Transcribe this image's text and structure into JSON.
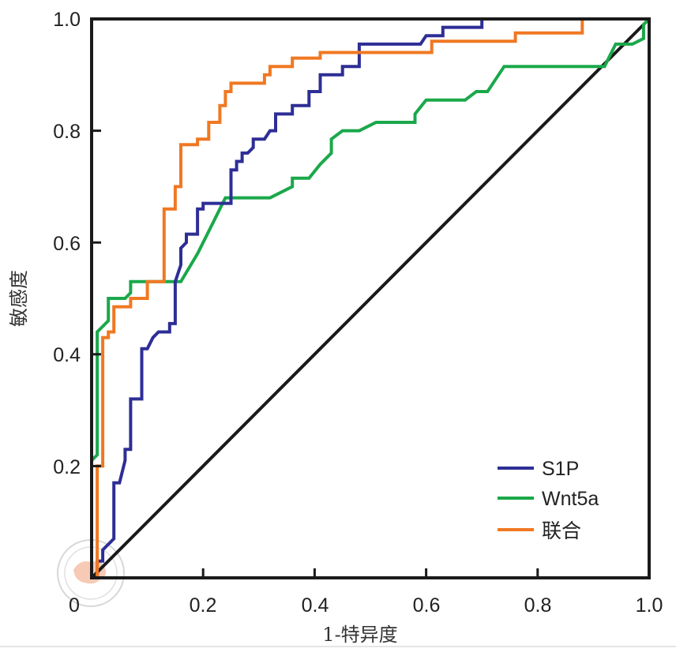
{
  "chart_data": {
    "type": "line",
    "title": "",
    "xlabel": "1-特异度",
    "ylabel": "敏感度",
    "xlim": [
      0,
      1.0
    ],
    "ylim": [
      0,
      1.0
    ],
    "x_ticks": [
      0,
      0.2,
      0.4,
      0.6,
      0.8,
      1.0
    ],
    "x_tick_labels": [
      "0",
      "0.2",
      "0.4",
      "0.6",
      "0.8",
      "1.0"
    ],
    "y_ticks": [
      0.2,
      0.4,
      0.6,
      0.8,
      1.0
    ],
    "y_tick_labels": [
      "0.2",
      "0.4",
      "0.6",
      "0.8",
      "1.0"
    ],
    "grid": false,
    "legend_position": "bottom-right",
    "series": [
      {
        "name": "S1P",
        "color": "#2e2e96",
        "points": [
          [
            0,
            0
          ],
          [
            0.01,
            0
          ],
          [
            0.01,
            0.03
          ],
          [
            0.02,
            0.03
          ],
          [
            0.02,
            0.05
          ],
          [
            0.03,
            0.06
          ],
          [
            0.04,
            0.07
          ],
          [
            0.04,
            0.17
          ],
          [
            0.05,
            0.17
          ],
          [
            0.06,
            0.21
          ],
          [
            0.06,
            0.23
          ],
          [
            0.07,
            0.23
          ],
          [
            0.07,
            0.32
          ],
          [
            0.09,
            0.32
          ],
          [
            0.09,
            0.41
          ],
          [
            0.1,
            0.41
          ],
          [
            0.11,
            0.43
          ],
          [
            0.12,
            0.44
          ],
          [
            0.14,
            0.44
          ],
          [
            0.14,
            0.455
          ],
          [
            0.15,
            0.455
          ],
          [
            0.15,
            0.53
          ],
          [
            0.16,
            0.56
          ],
          [
            0.16,
            0.59
          ],
          [
            0.17,
            0.6
          ],
          [
            0.17,
            0.615
          ],
          [
            0.19,
            0.615
          ],
          [
            0.19,
            0.66
          ],
          [
            0.2,
            0.66
          ],
          [
            0.2,
            0.67
          ],
          [
            0.25,
            0.67
          ],
          [
            0.25,
            0.73
          ],
          [
            0.26,
            0.73
          ],
          [
            0.26,
            0.745
          ],
          [
            0.27,
            0.745
          ],
          [
            0.27,
            0.76
          ],
          [
            0.28,
            0.76
          ],
          [
            0.29,
            0.77
          ],
          [
            0.29,
            0.785
          ],
          [
            0.31,
            0.785
          ],
          [
            0.32,
            0.8
          ],
          [
            0.33,
            0.8
          ],
          [
            0.33,
            0.83
          ],
          [
            0.36,
            0.83
          ],
          [
            0.36,
            0.845
          ],
          [
            0.39,
            0.845
          ],
          [
            0.39,
            0.87
          ],
          [
            0.41,
            0.87
          ],
          [
            0.41,
            0.9
          ],
          [
            0.45,
            0.9
          ],
          [
            0.45,
            0.915
          ],
          [
            0.48,
            0.915
          ],
          [
            0.48,
            0.955
          ],
          [
            0.59,
            0.955
          ],
          [
            0.6,
            0.97
          ],
          [
            0.63,
            0.97
          ],
          [
            0.63,
            0.985
          ],
          [
            0.7,
            0.985
          ],
          [
            0.7,
            1.0
          ],
          [
            1.0,
            1.0
          ]
        ]
      },
      {
        "name": "Wnt5a",
        "color": "#1aa84a",
        "points": [
          [
            0,
            0
          ],
          [
            0,
            0.21
          ],
          [
            0.01,
            0.22
          ],
          [
            0.01,
            0.44
          ],
          [
            0.03,
            0.46
          ],
          [
            0.03,
            0.5
          ],
          [
            0.06,
            0.5
          ],
          [
            0.07,
            0.51
          ],
          [
            0.07,
            0.53
          ],
          [
            0.1,
            0.53
          ],
          [
            0.16,
            0.53
          ],
          [
            0.19,
            0.58
          ],
          [
            0.21,
            0.62
          ],
          [
            0.23,
            0.66
          ],
          [
            0.24,
            0.68
          ],
          [
            0.32,
            0.68
          ],
          [
            0.36,
            0.7
          ],
          [
            0.36,
            0.715
          ],
          [
            0.39,
            0.715
          ],
          [
            0.41,
            0.74
          ],
          [
            0.43,
            0.76
          ],
          [
            0.43,
            0.785
          ],
          [
            0.45,
            0.8
          ],
          [
            0.48,
            0.8
          ],
          [
            0.51,
            0.815
          ],
          [
            0.58,
            0.815
          ],
          [
            0.58,
            0.83
          ],
          [
            0.6,
            0.855
          ],
          [
            0.67,
            0.855
          ],
          [
            0.69,
            0.87
          ],
          [
            0.71,
            0.87
          ],
          [
            0.74,
            0.915
          ],
          [
            0.92,
            0.915
          ],
          [
            0.94,
            0.955
          ],
          [
            0.97,
            0.955
          ],
          [
            0.99,
            0.965
          ],
          [
            0.99,
            0.99
          ],
          [
            1.0,
            1.0
          ]
        ]
      },
      {
        "name": "联合",
        "color": "#f07822",
        "points": [
          [
            0,
            0
          ],
          [
            0.01,
            0
          ],
          [
            0.01,
            0.04
          ],
          [
            0.01,
            0.2
          ],
          [
            0.02,
            0.2
          ],
          [
            0.02,
            0.43
          ],
          [
            0.03,
            0.43
          ],
          [
            0.03,
            0.44
          ],
          [
            0.04,
            0.44
          ],
          [
            0.04,
            0.485
          ],
          [
            0.07,
            0.485
          ],
          [
            0.07,
            0.5
          ],
          [
            0.1,
            0.5
          ],
          [
            0.1,
            0.53
          ],
          [
            0.13,
            0.53
          ],
          [
            0.13,
            0.66
          ],
          [
            0.15,
            0.66
          ],
          [
            0.15,
            0.7
          ],
          [
            0.16,
            0.7
          ],
          [
            0.16,
            0.775
          ],
          [
            0.19,
            0.775
          ],
          [
            0.19,
            0.785
          ],
          [
            0.21,
            0.785
          ],
          [
            0.21,
            0.815
          ],
          [
            0.23,
            0.815
          ],
          [
            0.23,
            0.845
          ],
          [
            0.24,
            0.845
          ],
          [
            0.24,
            0.87
          ],
          [
            0.25,
            0.87
          ],
          [
            0.25,
            0.885
          ],
          [
            0.31,
            0.885
          ],
          [
            0.31,
            0.9
          ],
          [
            0.32,
            0.9
          ],
          [
            0.32,
            0.915
          ],
          [
            0.36,
            0.915
          ],
          [
            0.36,
            0.93
          ],
          [
            0.41,
            0.93
          ],
          [
            0.41,
            0.94
          ],
          [
            0.61,
            0.94
          ],
          [
            0.61,
            0.96
          ],
          [
            0.76,
            0.96
          ],
          [
            0.76,
            0.975
          ],
          [
            0.88,
            0.975
          ],
          [
            0.88,
            1.0
          ],
          [
            1.0,
            1.0
          ]
        ]
      },
      {
        "name": "reference",
        "color": "#1a1a1a",
        "points": [
          [
            0,
            0
          ],
          [
            1.0,
            1.0
          ]
        ],
        "in_legend": false
      }
    ]
  },
  "legend": {
    "items": [
      {
        "label": "S1P",
        "color": "#2e2e96"
      },
      {
        "label": "Wnt5a",
        "color": "#1aa84a"
      },
      {
        "label": "联合",
        "color": "#f07822"
      }
    ]
  },
  "watermark": {
    "name": "Chinese Medical Association seal"
  }
}
